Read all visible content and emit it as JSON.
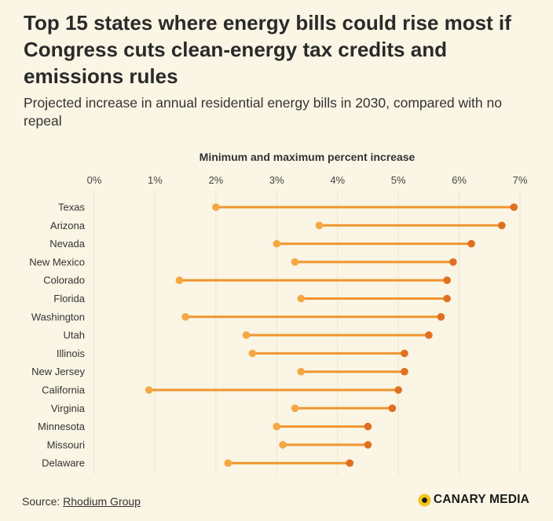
{
  "title": "Top 15 states where energy bills could rise most if Congress cuts clean-energy tax credits and emissions rules",
  "subtitle": "Projected increase in annual residential energy bills in 2030, compared with no repeal",
  "source": {
    "label": "Source: ",
    "link_text": "Rhodium Group"
  },
  "brand": {
    "name": "CANARY MEDIA",
    "icon": "canary-logo-icon"
  },
  "colors": {
    "background": "#faf5e4",
    "min_dot": "#f5a742",
    "max_dot": "#e06f1f",
    "line": "#f0952e",
    "grid": "#ece4cf",
    "logo_yellow": "#f3c41a"
  },
  "chart_data": {
    "type": "dumbbell",
    "xlabel": "Minimum and maximum percent increase",
    "xlim": [
      0,
      7
    ],
    "x_ticks": [
      0,
      1,
      2,
      3,
      4,
      5,
      6,
      7
    ],
    "x_tick_labels": [
      "0%",
      "1%",
      "2%",
      "3%",
      "4%",
      "5%",
      "6%",
      "7%"
    ],
    "grid": true,
    "categories": [
      "Texas",
      "Arizona",
      "Nevada",
      "New Mexico",
      "Colorado",
      "Florida",
      "Washington",
      "Utah",
      "Illinois",
      "New Jersey",
      "California",
      "Virginia",
      "Minnesota",
      "Missouri",
      "Delaware"
    ],
    "min": [
      2.0,
      3.7,
      3.0,
      3.3,
      1.4,
      3.4,
      1.5,
      2.5,
      2.6,
      3.4,
      0.9,
      3.3,
      3.0,
      3.1,
      2.2
    ],
    "max": [
      6.9,
      6.7,
      6.2,
      5.9,
      5.8,
      5.8,
      5.7,
      5.5,
      5.1,
      5.1,
      5.0,
      4.9,
      4.5,
      4.5,
      4.2
    ]
  }
}
